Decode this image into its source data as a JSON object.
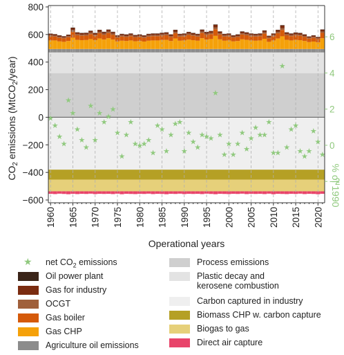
{
  "chart_data": {
    "type": "bar",
    "ylabel": "CO2 emissions (MtCO2/year)",
    "xlabel": "Operational years",
    "y2label": "% of 1990",
    "ylim": [
      -620,
      810
    ],
    "yticks": [
      -600,
      -400,
      -200,
      0,
      200,
      400,
      600,
      800
    ],
    "y2lim": [
      -3.18,
      7.73
    ],
    "y2ticks": [
      -2,
      0,
      2,
      4,
      6
    ],
    "xticks": [
      1960,
      1965,
      1970,
      1975,
      1980,
      1985,
      1990,
      1995,
      2000,
      2005,
      2010,
      2015,
      2020
    ],
    "x_start": 1960,
    "x_end": 2021,
    "grid": "dashed vertical lines every 5 years",
    "colors": {
      "oil_power_plant": "#3a2418",
      "gas_for_industry": "#7b2c10",
      "ocgt": "#a0603b",
      "gas_boiler": "#d55a0a",
      "gas_chp": "#f5a10a",
      "agriculture_oil": "#8c8c8c",
      "process_emissions": "#cfcfcf",
      "plastic_decay": "#e3e3e3",
      "carbon_captured": "#efefef",
      "biomass_chp_cc": "#b5a025",
      "biogas_to_gas": "#e6d07a",
      "direct_air_capture": "#e8446a",
      "net_marker": "#90c97e"
    },
    "stack_constant": {
      "process_emissions": 320,
      "agriculture_oil": 25,
      "carbon_captured": -380,
      "biomass_chp_cc": -92,
      "biogas_to_gas": -55
    },
    "series": [
      {
        "name": "Gas CHP",
        "values": [
          62,
          62,
          55,
          52,
          58,
          82,
          66,
          64,
          65,
          72,
          64,
          76,
          68,
          78,
          68,
          55,
          60,
          58,
          62,
          56,
          58,
          54,
          60,
          62,
          62,
          65,
          66,
          58,
          76,
          60,
          62,
          68,
          64,
          60,
          78,
          68,
          72,
          95,
          70,
          60,
          62,
          55,
          58,
          70,
          66,
          62,
          60,
          62,
          74,
          52,
          62,
          76,
          92,
          66,
          62,
          66,
          64,
          58,
          50,
          54,
          48,
          78
        ]
      },
      {
        "name": "Gas boiler",
        "values": [
          30,
          28,
          26,
          25,
          28,
          42,
          33,
          32,
          32,
          36,
          32,
          38,
          34,
          38,
          34,
          27,
          30,
          29,
          31,
          28,
          29,
          27,
          30,
          31,
          31,
          32,
          33,
          29,
          38,
          30,
          31,
          34,
          32,
          30,
          38,
          34,
          36,
          48,
          35,
          30,
          31,
          27,
          29,
          35,
          33,
          31,
          30,
          31,
          37,
          26,
          31,
          38,
          46,
          33,
          31,
          33,
          32,
          29,
          25,
          27,
          24,
          39
        ]
      },
      {
        "name": "OCGT",
        "values": [
          8,
          7,
          7,
          6,
          7,
          12,
          9,
          8,
          8,
          10,
          8,
          10,
          9,
          10,
          9,
          7,
          8,
          7,
          8,
          7,
          7,
          7,
          8,
          8,
          8,
          8,
          9,
          7,
          10,
          8,
          8,
          9,
          8,
          8,
          10,
          9,
          9,
          14,
          9,
          8,
          8,
          7,
          7,
          9,
          9,
          8,
          8,
          8,
          10,
          7,
          8,
          10,
          14,
          9,
          8,
          8,
          8,
          7,
          6,
          7,
          6,
          10
        ]
      },
      {
        "name": "Gas for industry",
        "values": [
          10,
          9,
          9,
          8,
          9,
          16,
          11,
          11,
          11,
          13,
          11,
          13,
          12,
          13,
          12,
          9,
          10,
          10,
          10,
          9,
          10,
          9,
          10,
          10,
          10,
          11,
          11,
          10,
          13,
          10,
          10,
          11,
          11,
          10,
          13,
          11,
          12,
          18,
          12,
          10,
          10,
          9,
          10,
          12,
          11,
          10,
          10,
          10,
          12,
          9,
          10,
          13,
          18,
          11,
          10,
          11,
          11,
          10,
          8,
          9,
          8,
          13
        ]
      },
      {
        "name": "Oil power plant",
        "values": [
          2,
          2,
          2,
          2,
          2,
          3,
          2,
          2,
          2,
          2,
          2,
          2,
          2,
          2,
          2,
          2,
          2,
          2,
          2,
          2,
          2,
          2,
          2,
          2,
          2,
          2,
          2,
          2,
          2,
          2,
          2,
          2,
          2,
          2,
          2,
          2,
          2,
          3,
          2,
          2,
          2,
          2,
          2,
          2,
          2,
          2,
          2,
          2,
          2,
          2,
          2,
          2,
          3,
          2,
          2,
          2,
          2,
          2,
          2,
          2,
          2,
          2
        ]
      },
      {
        "name": "Direct air capture",
        "values": [
          -18,
          -20,
          -17,
          -19,
          -21,
          -18,
          -20,
          -18,
          -19,
          -17,
          -20,
          -18,
          -19,
          -18,
          -20,
          -17,
          -21,
          -18,
          -19,
          -20,
          -18,
          -19,
          -17,
          -20,
          -18,
          -19,
          -21,
          -18,
          -19,
          -17,
          -20,
          -18,
          -19,
          -18,
          -20,
          -17,
          -19,
          -21,
          -18,
          -19,
          -20,
          -18,
          -19,
          -17,
          -20,
          -18,
          -19,
          -18,
          -20,
          -17,
          -21,
          -18,
          -19,
          -20,
          -18,
          -19,
          -17,
          -20,
          -18,
          -19,
          -21,
          -18
        ]
      },
      {
        "name": "net CO2 emissions",
        "axis": "right",
        "values": [
          1.5,
          1.1,
          0.5,
          0.1,
          2.5,
          1.8,
          0.9,
          0.3,
          -0.1,
          2.2,
          0.3,
          1.8,
          1.3,
          1.6,
          2.0,
          0.7,
          -0.6,
          0.6,
          1.3,
          0.1,
          0.0,
          0.1,
          0.3,
          -0.4,
          1.1,
          0.9,
          -0.3,
          0.6,
          1.2,
          1.3,
          -0.3,
          0.7,
          0.2,
          -0.1,
          0.6,
          0.5,
          0.4,
          2.9,
          0.6,
          -0.5,
          0.1,
          -0.5,
          0.1,
          0.7,
          -0.2,
          0.4,
          1.0,
          0.6,
          0.6,
          1.3,
          -0.4,
          -0.4,
          4.4,
          -0.1,
          0.9,
          1.1,
          -0.3,
          -0.6,
          -0.3,
          0.8,
          0.2,
          -0.5
        ]
      }
    ],
    "legend_left": [
      {
        "label": "net CO2 emissions",
        "kind": "star",
        "color": "#90c97e"
      },
      {
        "label": "Oil power plant",
        "color": "#3a2418"
      },
      {
        "label": "Gas for industry",
        "color": "#7b2c10"
      },
      {
        "label": "OCGT",
        "color": "#a0603b"
      },
      {
        "label": "Gas boiler",
        "color": "#d55a0a"
      },
      {
        "label": "Gas CHP",
        "color": "#f5a10a"
      },
      {
        "label": "Agriculture oil emissions",
        "color": "#8c8c8c"
      }
    ],
    "legend_right": [
      {
        "label": "Process emissions",
        "color": "#cfcfcf"
      },
      {
        "label": "Plastic decay and kerosene combustion",
        "color": "#e3e3e3"
      },
      {
        "label": "Carbon captured in industry",
        "color": "#efefef"
      },
      {
        "label": "Biomass CHP w. carbon capture",
        "color": "#b5a025"
      },
      {
        "label": "Biogas to gas",
        "color": "#e6d07a"
      },
      {
        "label": "Direct air capture",
        "color": "#e8446a"
      }
    ]
  }
}
